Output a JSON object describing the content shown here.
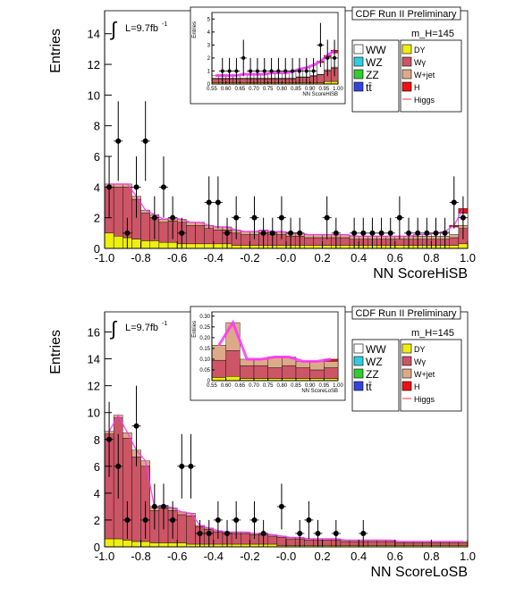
{
  "colors": {
    "ww": "#ffffff",
    "wz": "#33ccdd",
    "zz": "#33cc33",
    "tt": "#3344dd",
    "dy": "#eeee11",
    "wg": "#cc5566",
    "wjet": "#ddaa88",
    "h": "#ee1111",
    "higgs": "#ff3333",
    "errband": "#ff33ff",
    "data": "#000000"
  },
  "chart_data": [
    {
      "type": "histogram",
      "title": "CDF Run II Preliminary",
      "mass_label": "m_H=145",
      "lumi_label": "L=9.7fb",
      "lumi_sup": "-1",
      "integral_symbol": "∫",
      "xlabel": "NN ScoreHiSB",
      "ylabel": "Entries",
      "xlim": [
        -1.0,
        1.0
      ],
      "ylim": [
        0,
        15.5
      ],
      "xticks": [
        "-1.0",
        "-0.8",
        "-0.6",
        "-0.4",
        "-0.2",
        "-0.0",
        "0.2",
        "0.4",
        "0.6",
        "0.8",
        "1.0"
      ],
      "yticks": [
        "0",
        "2",
        "4",
        "6",
        "8",
        "10",
        "12",
        "14"
      ],
      "legend": [
        [
          "WW",
          "DY"
        ],
        [
          "WZ",
          "Wγ"
        ],
        [
          "ZZ",
          "W+jet"
        ],
        [
          "tt̄",
          "H"
        ],
        [
          "",
          "Higgs"
        ]
      ],
      "bins": {
        "lo": -1.0,
        "width": 0.05
      },
      "stack": {
        "dy": [
          1.0,
          0.8,
          0.7,
          0.6,
          0.5,
          0.5,
          0.4,
          0.4,
          0.3,
          0.3,
          0.3,
          0.3,
          0.3,
          0.3,
          0.2,
          0.2,
          0.2,
          0.2,
          0.2,
          0.2,
          0.2,
          0.2,
          0.2,
          0.2,
          0.2,
          0.2,
          0.2,
          0.2,
          0.2,
          0.2,
          0.2,
          0.2,
          0.2,
          0.2,
          0.2,
          0.2,
          0.2,
          0.2,
          0.2,
          0.3
        ],
        "wg": [
          3.0,
          3.2,
          3.3,
          2.6,
          1.8,
          1.5,
          1.3,
          1.4,
          1.4,
          1.2,
          1.2,
          1.0,
          0.9,
          0.9,
          0.8,
          0.7,
          0.7,
          0.8,
          0.7,
          0.7,
          0.6,
          0.6,
          0.5,
          0.5,
          0.5,
          0.5,
          0.5,
          0.4,
          0.4,
          0.4,
          0.4,
          0.4,
          0.4,
          0.4,
          0.4,
          0.4,
          0.4,
          0.4,
          0.5,
          1.0
        ],
        "wjet": [
          0.2,
          0.2,
          0.2,
          0.2,
          0.2,
          0.2,
          0.2,
          0.2,
          0.2,
          0.2,
          0.2,
          0.2,
          0.2,
          0.2,
          0.2,
          0.2,
          0.2,
          0.2,
          0.2,
          0.2,
          0.2,
          0.2,
          0.2,
          0.2,
          0.2,
          0.2,
          0.2,
          0.2,
          0.2,
          0.2,
          0.2,
          0.2,
          0.2,
          0.2,
          0.2,
          0.2,
          0.2,
          0.2,
          0.2,
          0.2
        ],
        "ww": [
          0.0,
          0.0,
          0.0,
          0.0,
          0.0,
          0.0,
          0.0,
          0.0,
          0.0,
          0.0,
          0.0,
          0.0,
          0.0,
          0.0,
          0.0,
          0.0,
          0.0,
          0.0,
          0.0,
          0.0,
          0.0,
          0.0,
          0.0,
          0.0,
          0.0,
          0.0,
          0.0,
          0.0,
          0.0,
          0.0,
          0.0,
          0.0,
          0.0,
          0.0,
          0.1,
          0.1,
          0.2,
          0.3,
          0.5,
          0.8
        ],
        "h": [
          0.0,
          0.0,
          0.0,
          0.0,
          0.0,
          0.0,
          0.0,
          0.0,
          0.0,
          0.0,
          0.0,
          0.0,
          0.0,
          0.0,
          0.0,
          0.0,
          0.0,
          0.0,
          0.0,
          0.0,
          0.0,
          0.0,
          0.0,
          0.0,
          0.0,
          0.0,
          0.0,
          0.0,
          0.0,
          0.0,
          0.0,
          0.0,
          0.0,
          0.0,
          0.0,
          0.0,
          0.0,
          0.0,
          0.1,
          0.3
        ]
      },
      "points": [
        {
          "x": -0.975,
          "y": 4,
          "e": 2.0
        },
        {
          "x": -0.925,
          "y": 7,
          "e": 2.6
        },
        {
          "x": -0.875,
          "y": 1,
          "e": 1.0
        },
        {
          "x": -0.825,
          "y": 4,
          "e": 2.0
        },
        {
          "x": -0.775,
          "y": 7,
          "e": 2.6
        },
        {
          "x": -0.725,
          "y": 2,
          "e": 1.4
        },
        {
          "x": -0.675,
          "y": 4,
          "e": 2.0
        },
        {
          "x": -0.625,
          "y": 2,
          "e": 1.4
        },
        {
          "x": -0.575,
          "y": 1,
          "e": 1.0
        },
        {
          "x": -0.425,
          "y": 3,
          "e": 1.7
        },
        {
          "x": -0.375,
          "y": 3,
          "e": 1.7
        },
        {
          "x": -0.325,
          "y": 1,
          "e": 1.0
        },
        {
          "x": -0.275,
          "y": 2,
          "e": 1.4
        },
        {
          "x": -0.175,
          "y": 2,
          "e": 1.4
        },
        {
          "x": -0.125,
          "y": 1,
          "e": 1.0
        },
        {
          "x": -0.075,
          "y": 1,
          "e": 1.0
        },
        {
          "x": -0.025,
          "y": 2,
          "e": 1.4
        },
        {
          "x": 0.025,
          "y": 1,
          "e": 1.0
        },
        {
          "x": 0.075,
          "y": 1,
          "e": 1.0
        },
        {
          "x": 0.225,
          "y": 2,
          "e": 1.4
        },
        {
          "x": 0.275,
          "y": 1,
          "e": 1.0
        },
        {
          "x": 0.375,
          "y": 1,
          "e": 1.0
        },
        {
          "x": 0.425,
          "y": 1,
          "e": 1.0
        },
        {
          "x": 0.475,
          "y": 1,
          "e": 1.0
        },
        {
          "x": 0.525,
          "y": 1,
          "e": 1.0
        },
        {
          "x": 0.575,
          "y": 1,
          "e": 1.0
        },
        {
          "x": 0.625,
          "y": 2,
          "e": 1.4
        },
        {
          "x": 0.675,
          "y": 1,
          "e": 1.0
        },
        {
          "x": 0.725,
          "y": 1,
          "e": 1.0
        },
        {
          "x": 0.775,
          "y": 1,
          "e": 1.0
        },
        {
          "x": 0.825,
          "y": 1,
          "e": 1.0
        },
        {
          "x": 0.875,
          "y": 1,
          "e": 1.0
        },
        {
          "x": 0.925,
          "y": 3,
          "e": 1.7
        },
        {
          "x": 0.975,
          "y": 2,
          "e": 1.4
        }
      ],
      "inset": {
        "xlabel": "NN ScoreHiSB",
        "ylabel": "Entries",
        "xlim": [
          0.55,
          1.0
        ],
        "ylim": [
          0,
          5.5
        ],
        "xticks": [
          "0.55",
          "0.60",
          "0.65",
          "0.70",
          "0.75",
          "0.80",
          "0.85",
          "0.90",
          "0.95",
          "1.00"
        ],
        "yticks": [
          "0",
          "1",
          "2",
          "3",
          "4",
          "5"
        ],
        "bins": {
          "lo": 0.55,
          "width": 0.025
        },
        "stack": {
          "dy": [
            0.1,
            0.1,
            0.1,
            0.1,
            0.1,
            0.1,
            0.1,
            0.1,
            0.1,
            0.1,
            0.1,
            0.1,
            0.1,
            0.1,
            0.1,
            0.1,
            0.2,
            0.2
          ],
          "wg": [
            0.3,
            0.3,
            0.3,
            0.3,
            0.3,
            0.3,
            0.3,
            0.3,
            0.3,
            0.3,
            0.3,
            0.3,
            0.4,
            0.4,
            0.5,
            0.6,
            0.8,
            1.0
          ],
          "wjet": [
            0.05,
            0.05,
            0.05,
            0.05,
            0.05,
            0.05,
            0.05,
            0.05,
            0.05,
            0.05,
            0.05,
            0.05,
            0.05,
            0.05,
            0.05,
            0.05,
            0.1,
            0.1
          ],
          "ww": [
            0.2,
            0.2,
            0.2,
            0.2,
            0.3,
            0.3,
            0.3,
            0.3,
            0.4,
            0.4,
            0.4,
            0.5,
            0.6,
            0.7,
            0.8,
            0.9,
            1.0,
            1.1
          ],
          "h": [
            0.0,
            0.0,
            0.0,
            0.0,
            0.0,
            0.0,
            0.0,
            0.0,
            0.0,
            0.0,
            0.0,
            0.0,
            0.0,
            0.0,
            0.0,
            0.1,
            0.1,
            0.2
          ]
        },
        "points": [
          {
            "x": 0.5625,
            "y": 0,
            "e": 0
          },
          {
            "x": 0.5875,
            "y": 1,
            "e": 1.0
          },
          {
            "x": 0.6125,
            "y": 1,
            "e": 1.0
          },
          {
            "x": 0.6375,
            "y": 1,
            "e": 1.0
          },
          {
            "x": 0.6625,
            "y": 2,
            "e": 1.4
          },
          {
            "x": 0.6875,
            "y": 1,
            "e": 1.0
          },
          {
            "x": 0.7125,
            "y": 1,
            "e": 1.0
          },
          {
            "x": 0.7375,
            "y": 1,
            "e": 1.0
          },
          {
            "x": 0.7625,
            "y": 1,
            "e": 1.0
          },
          {
            "x": 0.7875,
            "y": 1,
            "e": 1.0
          },
          {
            "x": 0.8125,
            "y": 1,
            "e": 1.0
          },
          {
            "x": 0.8375,
            "y": 1,
            "e": 1.0
          },
          {
            "x": 0.8625,
            "y": 1,
            "e": 1.0
          },
          {
            "x": 0.8875,
            "y": 1,
            "e": 1.0
          },
          {
            "x": 0.9125,
            "y": 1,
            "e": 1.0
          },
          {
            "x": 0.9375,
            "y": 3,
            "e": 1.7
          },
          {
            "x": 0.9625,
            "y": 2,
            "e": 1.4
          },
          {
            "x": 0.9875,
            "y": 2,
            "e": 1.4
          }
        ]
      }
    },
    {
      "type": "histogram",
      "title": "CDF Run II Preliminary",
      "mass_label": "m_H=145",
      "lumi_label": "L=9.7fb",
      "lumi_sup": "-1",
      "integral_symbol": "∫",
      "xlabel": "NN ScoreLoSB",
      "ylabel": "Entries",
      "xlim": [
        -1.0,
        1.0
      ],
      "ylim": [
        0,
        17.5
      ],
      "xticks": [
        "-1.0",
        "-0.8",
        "-0.6",
        "-0.4",
        "-0.2",
        "-0.0",
        "0.2",
        "0.4",
        "0.6",
        "0.8",
        "1.0"
      ],
      "yticks": [
        "0",
        "2",
        "4",
        "6",
        "8",
        "10",
        "12",
        "14",
        "16"
      ],
      "legend": [
        [
          "WW",
          "DY"
        ],
        [
          "WZ",
          "Wγ"
        ],
        [
          "ZZ",
          "W+jet"
        ],
        [
          "tt̄",
          "H"
        ],
        [
          "",
          "Higgs"
        ]
      ],
      "bins": {
        "lo": -1.0,
        "width": 0.05
      },
      "stack": {
        "dy": [
          0.6,
          0.6,
          0.5,
          0.4,
          0.4,
          0.3,
          0.3,
          0.3,
          0.3,
          0.2,
          0.2,
          0.2,
          0.2,
          0.2,
          0.2,
          0.2,
          0.2,
          0.2,
          0.2,
          0.1,
          0.1,
          0.1,
          0.1,
          0.1,
          0.1,
          0.1,
          0.1,
          0.1,
          0.1,
          0.1,
          0.1,
          0.1,
          0.1,
          0.1,
          0.1,
          0.1,
          0.1,
          0.1,
          0.1,
          0.1
        ],
        "wg": [
          7.8,
          9.0,
          7.6,
          6.3,
          5.6,
          2.4,
          2.6,
          2.4,
          2.1,
          2.1,
          1.3,
          1.1,
          0.9,
          0.8,
          0.8,
          0.8,
          0.7,
          0.7,
          0.6,
          0.6,
          0.5,
          0.5,
          0.4,
          0.4,
          0.4,
          0.4,
          0.3,
          0.3,
          0.3,
          0.3,
          0.3,
          0.3,
          0.2,
          0.2,
          0.2,
          0.2,
          0.2,
          0.2,
          0.2,
          0.2
        ],
        "wjet": [
          0.2,
          0.2,
          0.4,
          0.5,
          0.4,
          0.2,
          0.2,
          0.2,
          0.2,
          0.2,
          0.1,
          0.1,
          0.1,
          0.1,
          0.1,
          0.1,
          0.1,
          0.1,
          0.1,
          0.1,
          0.1,
          0.1,
          0.1,
          0.1,
          0.1,
          0.1,
          0.1,
          0.1,
          0.1,
          0.1,
          0.1,
          0.1,
          0.1,
          0.1,
          0.1,
          0.1,
          0.1,
          0.1,
          0.1,
          0.1
        ],
        "ww": [
          0.0,
          0.0,
          0.0,
          0.0,
          0.0,
          0.0,
          0.0,
          0.0,
          0.0,
          0.0,
          0.0,
          0.0,
          0.0,
          0.0,
          0.0,
          0.0,
          0.0,
          0.0,
          0.0,
          0.0,
          0.0,
          0.0,
          0.0,
          0.0,
          0.0,
          0.0,
          0.0,
          0.0,
          0.0,
          0.0,
          0.0,
          0.0,
          0.0,
          0.0,
          0.0,
          0.0,
          0.0,
          0.0,
          0.0,
          0.0
        ],
        "h": [
          0.0,
          0.0,
          0.0,
          0.0,
          0.0,
          0.0,
          0.0,
          0.0,
          0.0,
          0.0,
          0.0,
          0.0,
          0.0,
          0.0,
          0.0,
          0.0,
          0.0,
          0.0,
          0.0,
          0.0,
          0.0,
          0.0,
          0.0,
          0.0,
          0.0,
          0.0,
          0.0,
          0.0,
          0.0,
          0.0,
          0.0,
          0.0,
          0.0,
          0.0,
          0.0,
          0.0,
          0.0,
          0.0,
          0.0,
          0.0
        ]
      },
      "points": [
        {
          "x": -0.975,
          "y": 8,
          "e": 2.8
        },
        {
          "x": -0.925,
          "y": 6,
          "e": 2.4
        },
        {
          "x": -0.875,
          "y": 2,
          "e": 1.4
        },
        {
          "x": -0.825,
          "y": 9,
          "e": 3.0
        },
        {
          "x": -0.775,
          "y": 2,
          "e": 1.4
        },
        {
          "x": -0.725,
          "y": 3,
          "e": 1.7
        },
        {
          "x": -0.675,
          "y": 3,
          "e": 1.7
        },
        {
          "x": -0.625,
          "y": 2,
          "e": 1.4
        },
        {
          "x": -0.575,
          "y": 6,
          "e": 2.4
        },
        {
          "x": -0.525,
          "y": 6,
          "e": 2.4
        },
        {
          "x": -0.475,
          "y": 1,
          "e": 1.0
        },
        {
          "x": -0.425,
          "y": 1,
          "e": 1.0
        },
        {
          "x": -0.375,
          "y": 2,
          "e": 1.4
        },
        {
          "x": -0.325,
          "y": 1,
          "e": 1.0
        },
        {
          "x": -0.275,
          "y": 2,
          "e": 1.4
        },
        {
          "x": -0.175,
          "y": 2,
          "e": 1.4
        },
        {
          "x": -0.125,
          "y": 1,
          "e": 1.0
        },
        {
          "x": -0.025,
          "y": 3,
          "e": 1.7
        },
        {
          "x": 0.075,
          "y": 1,
          "e": 1.0
        },
        {
          "x": 0.125,
          "y": 2,
          "e": 1.4
        },
        {
          "x": 0.175,
          "y": 1,
          "e": 1.0
        },
        {
          "x": 0.275,
          "y": 1,
          "e": 1.0
        },
        {
          "x": 0.425,
          "y": 1,
          "e": 1.0
        }
      ],
      "inset": {
        "xlabel": "NN ScoreLoSB",
        "ylabel": "Entries",
        "xlim": [
          0.55,
          1.0
        ],
        "ylim": [
          0,
          0.32
        ],
        "xticks": [
          "0.55",
          "0.60",
          "0.65",
          "0.70",
          "0.75",
          "0.80",
          "0.85",
          "0.90",
          "0.95",
          "1.00"
        ],
        "yticks": [
          "0",
          "0.05",
          "0.10",
          "0.15",
          "0.20",
          "0.25",
          "0.30"
        ],
        "bins": {
          "lo": 0.55,
          "width": 0.05
        },
        "stack": {
          "dy": [
            0.015,
            0.02,
            0.01,
            0.01,
            0.01,
            0.01,
            0.01,
            0.01,
            0.01
          ],
          "wg": [
            0.08,
            0.12,
            0.06,
            0.06,
            0.05,
            0.06,
            0.05,
            0.04,
            0.05
          ],
          "wjet": [
            0.07,
            0.13,
            0.03,
            0.03,
            0.05,
            0.04,
            0.03,
            0.04,
            0.03
          ],
          "ww": [
            0.0,
            0.0,
            0.0,
            0.0,
            0.0,
            0.0,
            0.0,
            0.0,
            0.0
          ],
          "h": [
            0.0,
            0.0,
            0.0,
            0.0,
            0.0,
            0.0,
            0.0,
            0.0,
            0.01
          ]
        },
        "points": []
      }
    }
  ]
}
